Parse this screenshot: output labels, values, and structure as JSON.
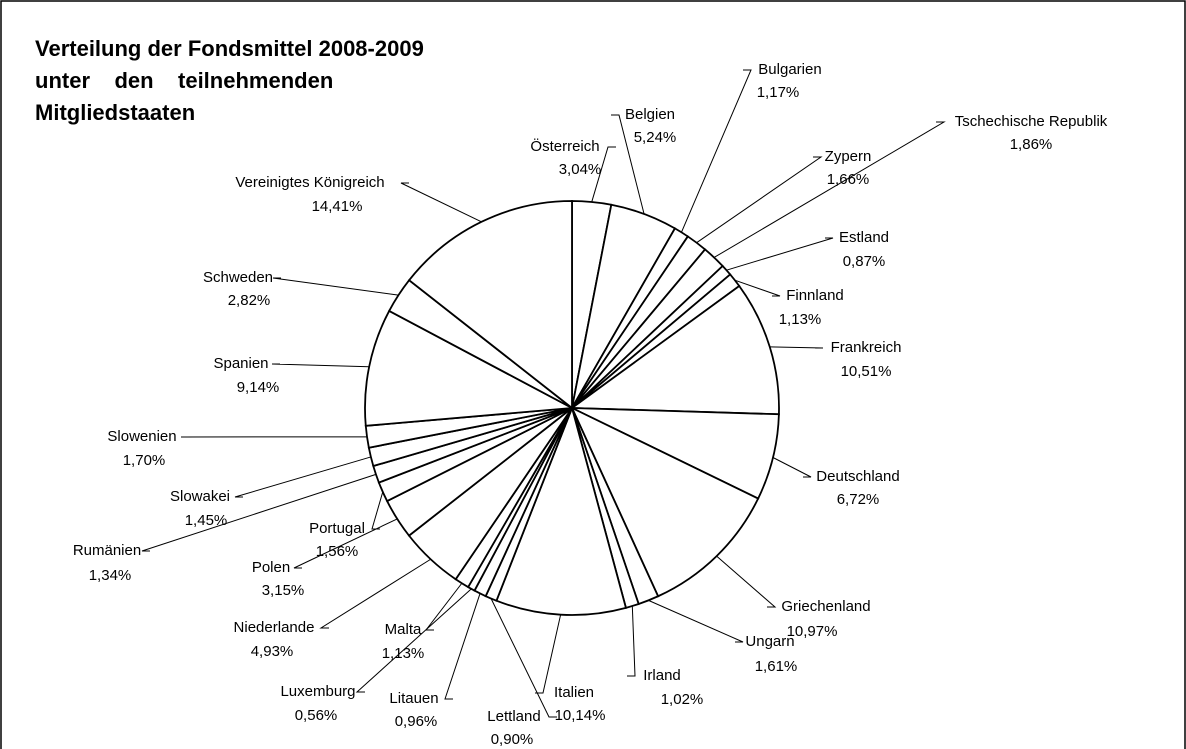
{
  "chart_data": {
    "type": "pie",
    "title": [
      "Verteilung der Fondsmittel 2008-2009",
      "unter    den    teilnehmenden",
      "Mitgliedstaaten"
    ],
    "categories": [
      "Österreich",
      "Belgien",
      "Bulgarien",
      "Zypern",
      "Tschechische Republik",
      "Estland",
      "Finnland",
      "Frankreich",
      "Deutschland",
      "Griechenland",
      "Ungarn",
      "Irland",
      "Italien",
      "Lettland",
      "Litauen",
      "Luxemburg",
      "Malta",
      "Niederlande",
      "Polen",
      "Portugal",
      "Rumänien",
      "Slowakei",
      "Slowenien",
      "Spanien",
      "Schweden",
      "Vereinigtes Königreich"
    ],
    "values": [
      3.04,
      5.24,
      1.17,
      1.66,
      1.86,
      0.87,
      1.13,
      10.51,
      6.72,
      10.97,
      1.61,
      1.02,
      10.14,
      0.9,
      0.96,
      0.56,
      1.13,
      4.93,
      3.15,
      1.56,
      1.34,
      1.45,
      1.7,
      9.14,
      2.82,
      14.41
    ],
    "value_labels": [
      "3,04%",
      "5,24%",
      "1,17%",
      "1,66%",
      "1,86%",
      "0,87%",
      "1,13%",
      "10,51%",
      "6,72%",
      "10,97%",
      "1,61%",
      "1,02%",
      "10,14%",
      "0,90%",
      "0,96%",
      "0,56%",
      "1,13%",
      "4,93%",
      "3,15%",
      "1,56%",
      "1,34%",
      "1,45%",
      "1,70%",
      "9,14%",
      "2,82%",
      "14,41%"
    ],
    "color": "#ffffff"
  }
}
